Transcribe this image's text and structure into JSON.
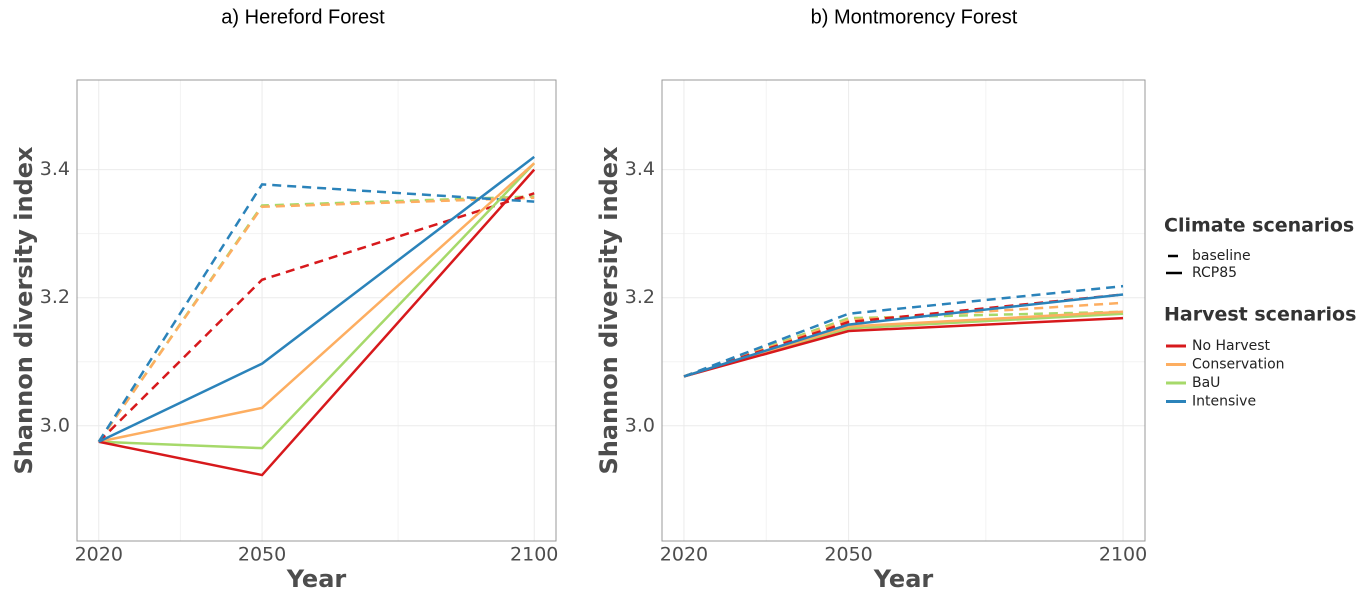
{
  "legend": {
    "climate_title": "Climate scenarios",
    "climate": [
      {
        "name": "baseline",
        "dashed": true
      },
      {
        "name": "RCP85",
        "dashed": false
      }
    ],
    "harvest_title": "Harvest scenarios",
    "harvest": [
      {
        "name": "No Harvest",
        "color": "#d7191c"
      },
      {
        "name": "Conservation",
        "color": "#fdae61"
      },
      {
        "name": "BaU",
        "color": "#a6d96a"
      },
      {
        "name": "Intensive",
        "color": "#2b83ba"
      }
    ]
  },
  "chart_data": [
    {
      "type": "line",
      "title": "a) Hereford Forest",
      "x_label": "Year",
      "y_label": "Shannon diversity index",
      "x": [
        2020,
        2050,
        2100
      ],
      "xlim": [
        2016,
        2104
      ],
      "xticks": [
        2020,
        2050,
        2100
      ],
      "ylim": [
        2.82,
        3.54
      ],
      "yticks": [
        {
          "value": 3.0,
          "label": "3.0"
        },
        {
          "value": 3.2,
          "label": "3.2"
        },
        {
          "value": 3.4,
          "label": "3.4"
        }
      ],
      "grid": true,
      "series": [
        {
          "harvest": "BaU",
          "climate": "baseline",
          "values": [
            2.975,
            3.344,
            3.358
          ]
        },
        {
          "harvest": "Conservation",
          "climate": "baseline",
          "values": [
            2.975,
            3.342,
            3.356
          ]
        },
        {
          "harvest": "No Harvest",
          "climate": "baseline",
          "values": [
            2.975,
            3.228,
            3.363
          ]
        },
        {
          "harvest": "Intensive",
          "climate": "baseline",
          "values": [
            2.975,
            3.377,
            3.35
          ]
        },
        {
          "harvest": "BaU",
          "climate": "RCP85",
          "values": [
            2.975,
            2.965,
            3.41
          ]
        },
        {
          "harvest": "Conservation",
          "climate": "RCP85",
          "values": [
            2.975,
            3.028,
            3.41
          ]
        },
        {
          "harvest": "No Harvest",
          "climate": "RCP85",
          "values": [
            2.975,
            2.923,
            3.4
          ]
        },
        {
          "harvest": "Intensive",
          "climate": "RCP85",
          "values": [
            2.975,
            3.097,
            3.42
          ]
        }
      ]
    },
    {
      "type": "line",
      "title": "b) Montmorency Forest",
      "x_label": "Year",
      "y_label": "Shannon diversity index",
      "x": [
        2020,
        2050,
        2100
      ],
      "xlim": [
        2016,
        2104
      ],
      "xticks": [
        2020,
        2050,
        2100
      ],
      "ylim": [
        2.82,
        3.54
      ],
      "yticks": [
        {
          "value": 3.0,
          "label": "3.0"
        },
        {
          "value": 3.2,
          "label": "3.2"
        },
        {
          "value": 3.4,
          "label": "3.4"
        }
      ],
      "grid": true,
      "series": [
        {
          "harvest": "BaU",
          "climate": "baseline",
          "values": [
            3.077,
            3.168,
            3.178
          ]
        },
        {
          "harvest": "Conservation",
          "climate": "baseline",
          "values": [
            3.077,
            3.165,
            3.192
          ]
        },
        {
          "harvest": "No Harvest",
          "climate": "baseline",
          "values": [
            3.077,
            3.162,
            3.205
          ]
        },
        {
          "harvest": "Intensive",
          "climate": "baseline",
          "values": [
            3.077,
            3.175,
            3.218
          ]
        },
        {
          "harvest": "BaU",
          "climate": "RCP85",
          "values": [
            3.077,
            3.152,
            3.175
          ]
        },
        {
          "harvest": "Conservation",
          "climate": "RCP85",
          "values": [
            3.077,
            3.155,
            3.178
          ]
        },
        {
          "harvest": "No Harvest",
          "climate": "RCP85",
          "values": [
            3.077,
            3.148,
            3.168
          ]
        },
        {
          "harvest": "Intensive",
          "climate": "RCP85",
          "values": [
            3.077,
            3.158,
            3.205
          ]
        }
      ]
    }
  ]
}
